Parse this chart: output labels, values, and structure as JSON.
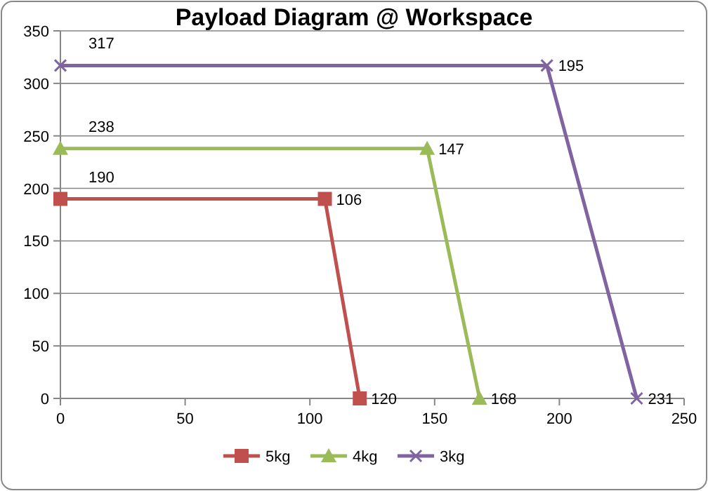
{
  "chart_data": {
    "type": "line",
    "title": "Payload Diagram @ Workspace",
    "xlim": [
      0,
      250
    ],
    "xticks": [
      0,
      50,
      100,
      150,
      200,
      250
    ],
    "ylim": [
      0,
      350
    ],
    "yticks": [
      0,
      50,
      100,
      150,
      200,
      250,
      300,
      350
    ],
    "grid": "y",
    "legend": "bottom",
    "series": [
      {
        "name": "5kg",
        "color": "#c0504d",
        "marker": "square",
        "x": [
          0,
          106,
          120
        ],
        "values": [
          190,
          190,
          0
        ]
      },
      {
        "name": "4kg",
        "color": "#9bbb59",
        "marker": "triangle",
        "x": [
          0,
          147,
          168
        ],
        "values": [
          238,
          238,
          0
        ]
      },
      {
        "name": "3kg",
        "color": "#8064a2",
        "marker": "cross",
        "x": [
          0,
          195,
          231
        ],
        "values": [
          317,
          317,
          0
        ]
      }
    ],
    "annotations": [
      {
        "text": "190",
        "x": 0,
        "y": 190
      },
      {
        "text": "106",
        "x": 106,
        "y": 190
      },
      {
        "text": "120",
        "x": 120,
        "y": 0
      },
      {
        "text": "238",
        "x": 0,
        "y": 238
      },
      {
        "text": "147",
        "x": 147,
        "y": 238
      },
      {
        "text": "168",
        "x": 168,
        "y": 0
      },
      {
        "text": "317",
        "x": 0,
        "y": 317
      },
      {
        "text": "195",
        "x": 195,
        "y": 317
      },
      {
        "text": "231",
        "x": 231,
        "y": 0
      }
    ]
  }
}
